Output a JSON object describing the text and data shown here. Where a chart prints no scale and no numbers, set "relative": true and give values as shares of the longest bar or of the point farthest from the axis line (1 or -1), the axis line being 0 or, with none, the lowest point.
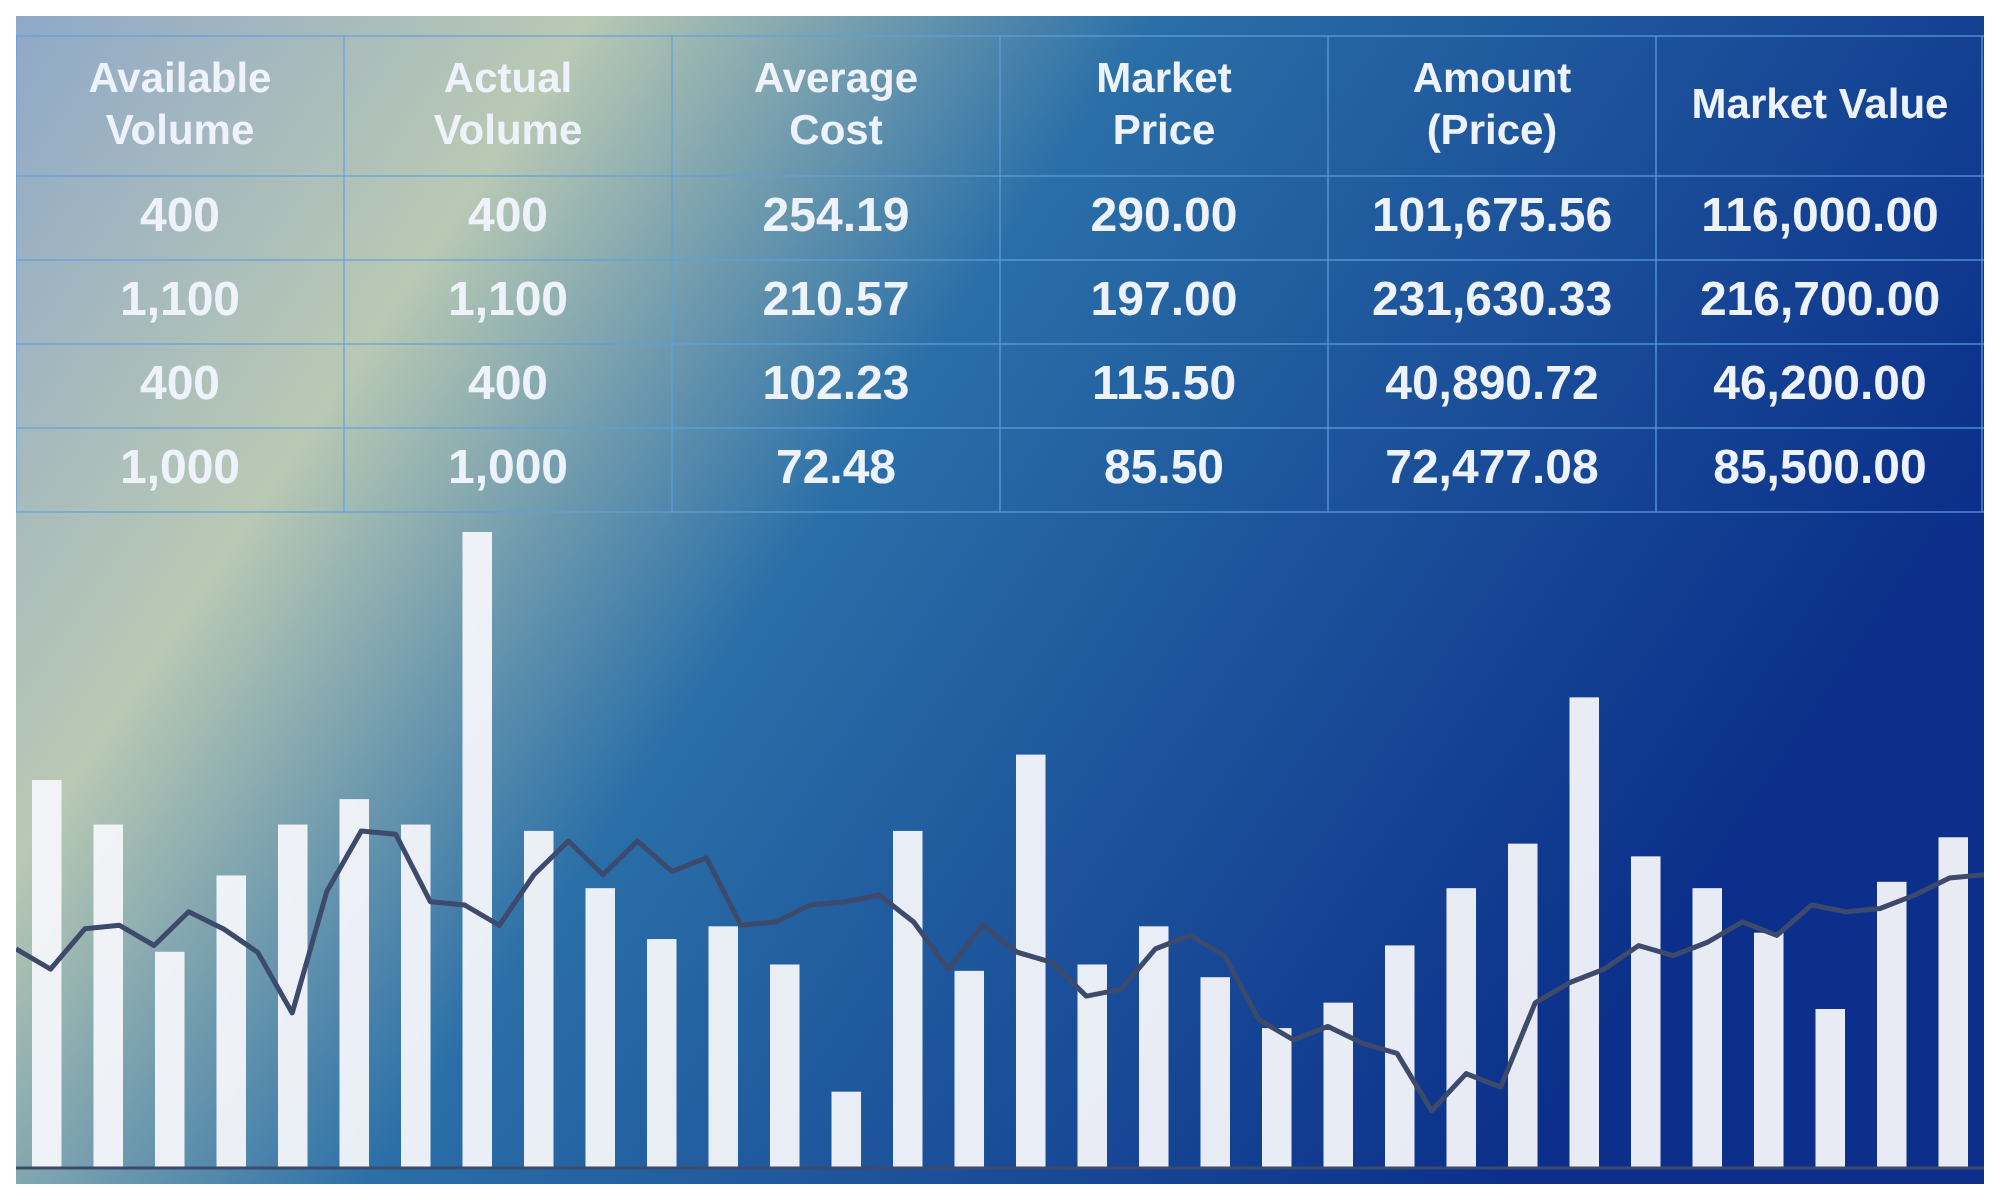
{
  "chart_data": [
    {
      "type": "bar",
      "relative": true,
      "annotations": [
        "Available\nVolume",
        "Actual\nVolume",
        "Average\nCost",
        "Market\nPrice",
        "Amount\n(Price)",
        "Market Value",
        "400",
        "400",
        "254.19",
        "290.00",
        "101,675.56",
        "116,000.00",
        "1,100",
        "1,100",
        "210.57",
        "197.00",
        "231,630.33",
        "216,700.00",
        "400",
        "400",
        "102.23",
        "115.50",
        "40,890.72",
        "46,200.00",
        "1,000",
        "1,000",
        "72.48",
        "85.50",
        "72,477.08",
        "85,500.00"
      ],
      "categories": [
        null,
        null,
        null,
        null,
        null,
        null,
        null,
        null,
        null,
        null,
        null,
        null,
        null,
        null,
        null,
        null,
        null,
        null,
        null,
        null,
        null,
        null,
        null,
        null,
        null,
        null,
        null,
        null,
        null,
        null,
        null,
        null
      ],
      "color": "#f4f6fa",
      "values": [
        0.61,
        0.54,
        0.34,
        0.46,
        0.54,
        0.58,
        0.54,
        1,
        0.53,
        0.44,
        0.36,
        0.38,
        0.32,
        0.12,
        0.53,
        0.31,
        0.65,
        0.32,
        0.38,
        0.3,
        0.22,
        0.26,
        0.35,
        0.44,
        0.51,
        0.74,
        0.49,
        0.44,
        0.37,
        0.25,
        0.45,
        0.52
      ]
    },
    {
      "type": "line",
      "relative": true,
      "color": "#3d4a6b",
      "categories": [
        null,
        null,
        null,
        null,
        null,
        null,
        null,
        null,
        null,
        null,
        null,
        null,
        null,
        null,
        null,
        null,
        null,
        null,
        null,
        null,
        null,
        null,
        null,
        null,
        null,
        null,
        null,
        null,
        null,
        null,
        null,
        null,
        null,
        null,
        null,
        null,
        null,
        null,
        null,
        null,
        null,
        null,
        null,
        null,
        null,
        null,
        null,
        null,
        null,
        null,
        null,
        null,
        null,
        null,
        null,
        null,
        null,
        null
      ],
      "values": [
        0.65,
        0.59,
        0.71,
        0.72,
        0.66,
        0.76,
        0.71,
        0.64,
        0.46,
        0.82,
        1,
        0.99,
        0.79,
        0.78,
        0.72,
        0.87,
        0.97,
        0.87,
        0.97,
        0.88,
        0.92,
        0.72,
        0.73,
        0.78,
        0.79,
        0.81,
        0.73,
        0.59,
        0.72,
        0.64,
        0.61,
        0.51,
        0.53,
        0.65,
        0.69,
        0.63,
        0.44,
        0.38,
        0.42,
        0.37,
        0.34,
        0.17,
        0.28,
        0.24,
        0.49,
        0.55,
        0.59,
        0.66,
        0.63,
        0.67,
        0.73,
        0.69,
        0.78,
        0.76,
        0.77,
        0.81,
        0.86,
        0.87
      ]
    }
  ]
}
